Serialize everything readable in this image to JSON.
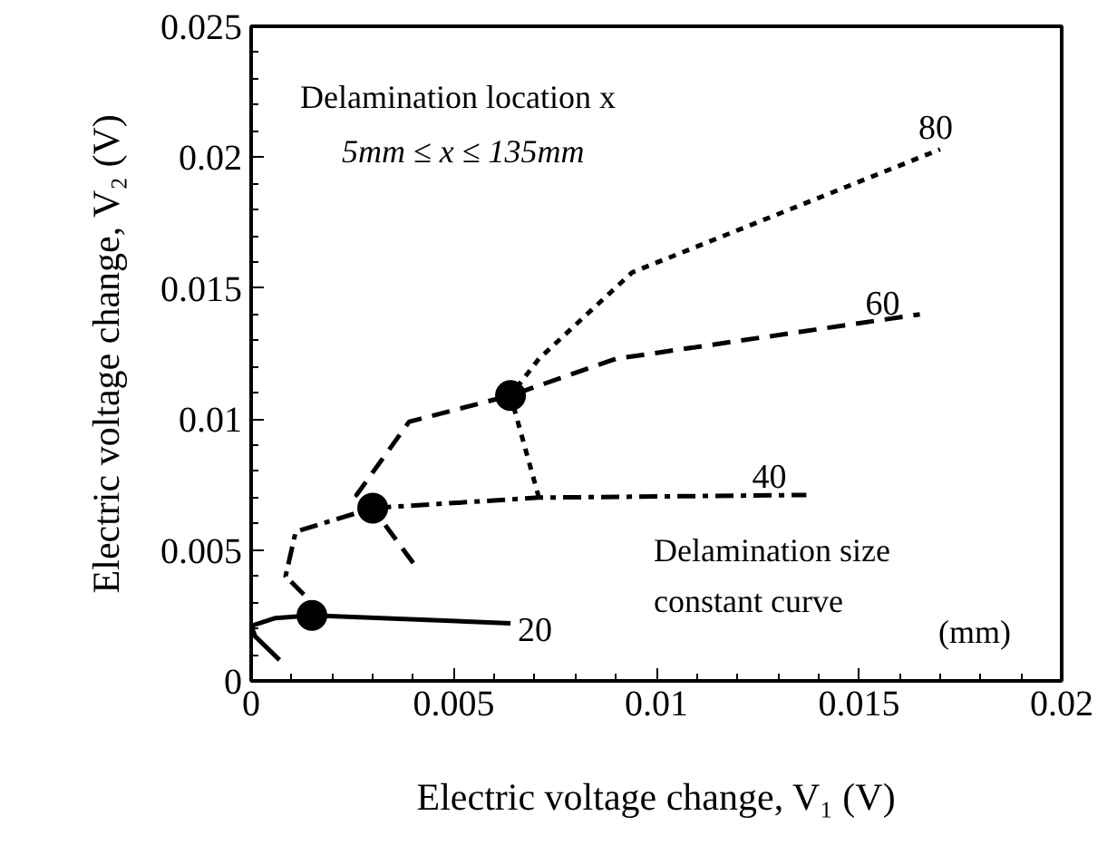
{
  "chart_data": {
    "type": "line",
    "xlabel": "Electric voltage change, V₁ (V)",
    "ylabel": "Electric voltage change, V₂ (V)",
    "xlim": [
      0,
      0.02
    ],
    "ylim": [
      0,
      0.025
    ],
    "xticks": [
      0,
      0.005,
      0.01,
      0.015,
      0.02
    ],
    "yticks": [
      0,
      0.005,
      0.01,
      0.015,
      0.02,
      0.025
    ],
    "grid": false,
    "series": [
      {
        "name": "20",
        "color": "#000000",
        "line_style": "solid",
        "x": [
          0.0007,
          0.0001,
          0,
          0.0006,
          0.0015,
          0.0064
        ],
        "values": [
          0.0008,
          0.0017,
          0.0021,
          0.0024,
          0.0025,
          0.0022
        ]
      },
      {
        "name": "40",
        "color": "#000000",
        "line_style": "dashdot",
        "x": [
          0.0013,
          0.00085,
          0.0011,
          0.003,
          0.0071,
          0.0137
        ],
        "values": [
          0.0033,
          0.004,
          0.0057,
          0.0066,
          0.007,
          0.0071
        ]
      },
      {
        "name": "60",
        "color": "#000000",
        "line_style": "dashed",
        "x": [
          0.004,
          0.003,
          0.0026,
          0.0039,
          0.0064,
          0.009,
          0.0165
        ],
        "values": [
          0.0045,
          0.0066,
          0.0071,
          0.0099,
          0.0109,
          0.0123,
          0.014
        ]
      },
      {
        "name": "80",
        "color": "#000000",
        "line_style": "dotted",
        "x": [
          0.0071,
          0.0064,
          0.0071,
          0.0094,
          0.017
        ],
        "values": [
          0.007,
          0.0109,
          0.0123,
          0.0156,
          0.0203
        ]
      },
      {
        "type": "scatter",
        "marker": "circle",
        "color": "#000000",
        "x": [
          0.0015,
          0.003,
          0.0064
        ],
        "values": [
          0.0025,
          0.0066,
          0.0109
        ]
      }
    ],
    "annotations": [
      "Delamination location x",
      "5mm ≤ x ≤ 135mm",
      "Delamination size",
      "constant curve",
      "(mm)"
    ]
  }
}
